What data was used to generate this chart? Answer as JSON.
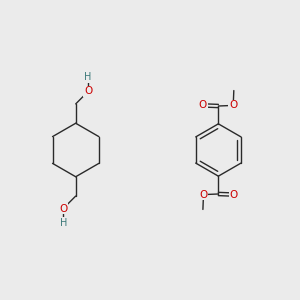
{
  "bg_color": "#ebebeb",
  "bond_color": "#2a2a2a",
  "o_color": "#cc0000",
  "h_color": "#3d7a7a",
  "lw": 1.0,
  "figsize": [
    3.0,
    3.0
  ],
  "dpi": 100,
  "xlim": [
    0,
    10
  ],
  "ylim": [
    0,
    10
  ]
}
